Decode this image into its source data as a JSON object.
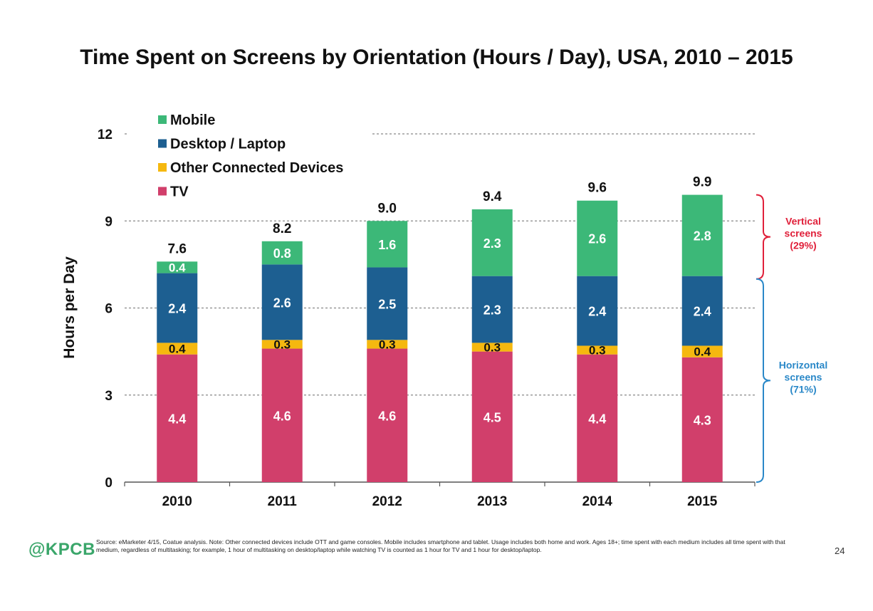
{
  "chart_data": {
    "type": "bar",
    "stacked": true,
    "title": "Time Spent on Screens by Orientation (Hours / Day), USA, 2010 – 2015",
    "xlabel": "",
    "ylabel": "Hours per Day",
    "ylim": [
      0,
      12
    ],
    "yticks": [
      0,
      3,
      6,
      9,
      12
    ],
    "grid": true,
    "legend_position": "top-left",
    "categories": [
      "2010",
      "2011",
      "2012",
      "2013",
      "2014",
      "2015"
    ],
    "series": [
      {
        "name": "TV",
        "color": "#d13f6b",
        "values": [
          4.4,
          4.6,
          4.6,
          4.5,
          4.4,
          4.3
        ],
        "labels": [
          "4.4",
          "4.6",
          "4.6",
          "4.5",
          "4.4",
          "4.3"
        ]
      },
      {
        "name": "Other Connected Devices",
        "color": "#f5b80f",
        "values": [
          0.4,
          0.3,
          0.3,
          0.3,
          0.3,
          0.4
        ],
        "labels": [
          "0.4",
          "0.3",
          "0.3",
          "0.3",
          "0.3",
          "0.4"
        ]
      },
      {
        "name": "Desktop / Laptop",
        "color": "#1d5f91",
        "values": [
          2.4,
          2.6,
          2.5,
          2.3,
          2.4,
          2.4
        ],
        "labels": [
          "2.4",
          "2.6",
          "2.5",
          "2.3",
          "2.4",
          "2.4"
        ]
      },
      {
        "name": "Mobile",
        "color": "#3cb878",
        "values": [
          0.4,
          0.8,
          1.6,
          2.3,
          2.6,
          2.8
        ],
        "labels": [
          "0.4",
          "0.8",
          "1.6",
          "2.3",
          "2.6",
          "2.8"
        ]
      }
    ],
    "legend_order": [
      "Mobile",
      "Desktop / Laptop",
      "Other Connected Devices",
      "TV"
    ],
    "totals": [
      "7.6",
      "8.2",
      "9.0",
      "9.4",
      "9.6",
      "9.9"
    ],
    "annotations": [
      {
        "text_lines": [
          "Vertical",
          "screens",
          "(29%)"
        ],
        "color": "#e0203a",
        "from": 7.0,
        "to": 9.9
      },
      {
        "text_lines": [
          "Horizontal",
          "screens",
          "(71%)"
        ],
        "color": "#2a88c8",
        "from": 0,
        "to": 7.0
      }
    ]
  },
  "footer": {
    "logo": "@KPCB",
    "source": "Source: eMarketer 4/15, Coatue analysis. Note: Other connected devices include OTT and game consoles. Mobile includes smartphone and tablet. Usage includes both home and work. Ages 18+; time spent with each medium includes all time spent with that medium, regardless of multitasking; for example, 1 hour of multitasking on desktop/laptop while watching TV is counted as 1 hour for TV and 1 hour for desktop/laptop.",
    "page_number": "24"
  }
}
